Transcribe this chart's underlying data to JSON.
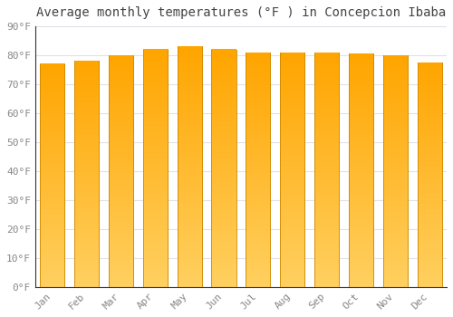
{
  "title": "Average monthly temperatures (°F ) in Concepcion Ibaba",
  "months": [
    "Jan",
    "Feb",
    "Mar",
    "Apr",
    "May",
    "Jun",
    "Jul",
    "Aug",
    "Sep",
    "Oct",
    "Nov",
    "Dec"
  ],
  "values": [
    77,
    78,
    80,
    82,
    83,
    82,
    81,
    81,
    81,
    80.5,
    80,
    77.5
  ],
  "bar_color_bottom": "#FFD060",
  "bar_color_top": "#FFA500",
  "bar_edge_color": "#CC8800",
  "background_color": "#FFFFFF",
  "grid_color": "#E0E0E8",
  "ylim": [
    0,
    90
  ],
  "yticks": [
    0,
    10,
    20,
    30,
    40,
    50,
    60,
    70,
    80,
    90
  ],
  "title_fontsize": 10,
  "tick_fontsize": 8
}
